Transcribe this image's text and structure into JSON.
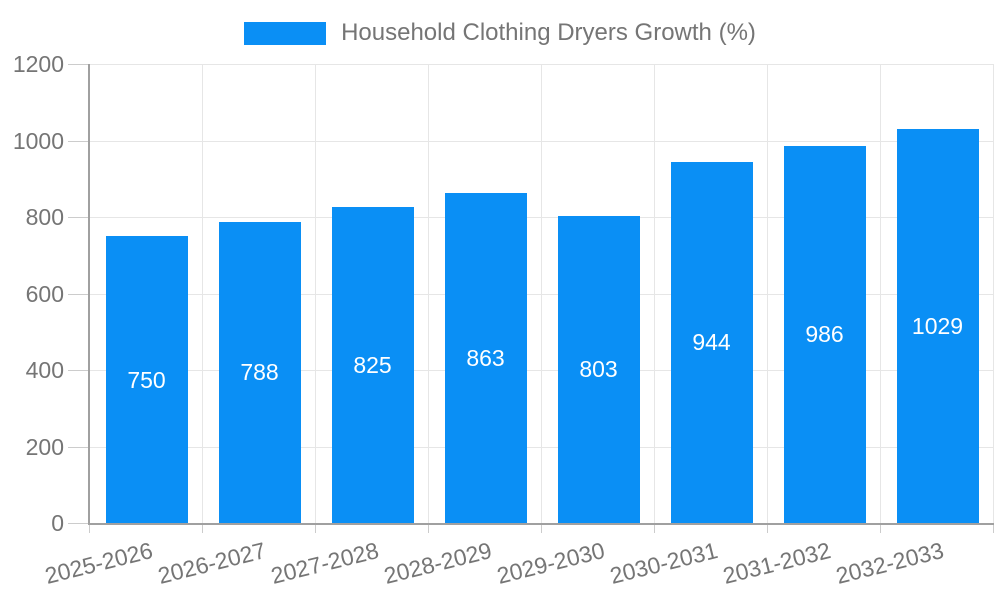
{
  "legend": {
    "series_label": "Household Clothing Dryers Growth (%)"
  },
  "colors": {
    "bar": "#0A8FF5",
    "axis_label": "#757575",
    "grid": "#e6e6e6",
    "tick": "#cccccc",
    "axis_line": "#a0a0a0",
    "bar_value_label": "#ffffff",
    "background": "#ffffff"
  },
  "chart_data": {
    "type": "bar",
    "title": "Household Clothing Dryers Growth (%)",
    "categories": [
      "2025-2026",
      "2026-2027",
      "2027-2028",
      "2028-2029",
      "2029-2030",
      "2030-2031",
      "2031-2032",
      "2032-2033"
    ],
    "values": [
      750,
      788,
      825,
      863,
      803,
      944,
      986,
      1029
    ],
    "xlabel": "",
    "ylabel": "",
    "ylim": [
      0,
      1200
    ],
    "yticks": [
      0,
      200,
      400,
      600,
      800,
      1000,
      1200
    ],
    "grid": true,
    "legend_position": "top",
    "value_label_position": "inside-center"
  }
}
